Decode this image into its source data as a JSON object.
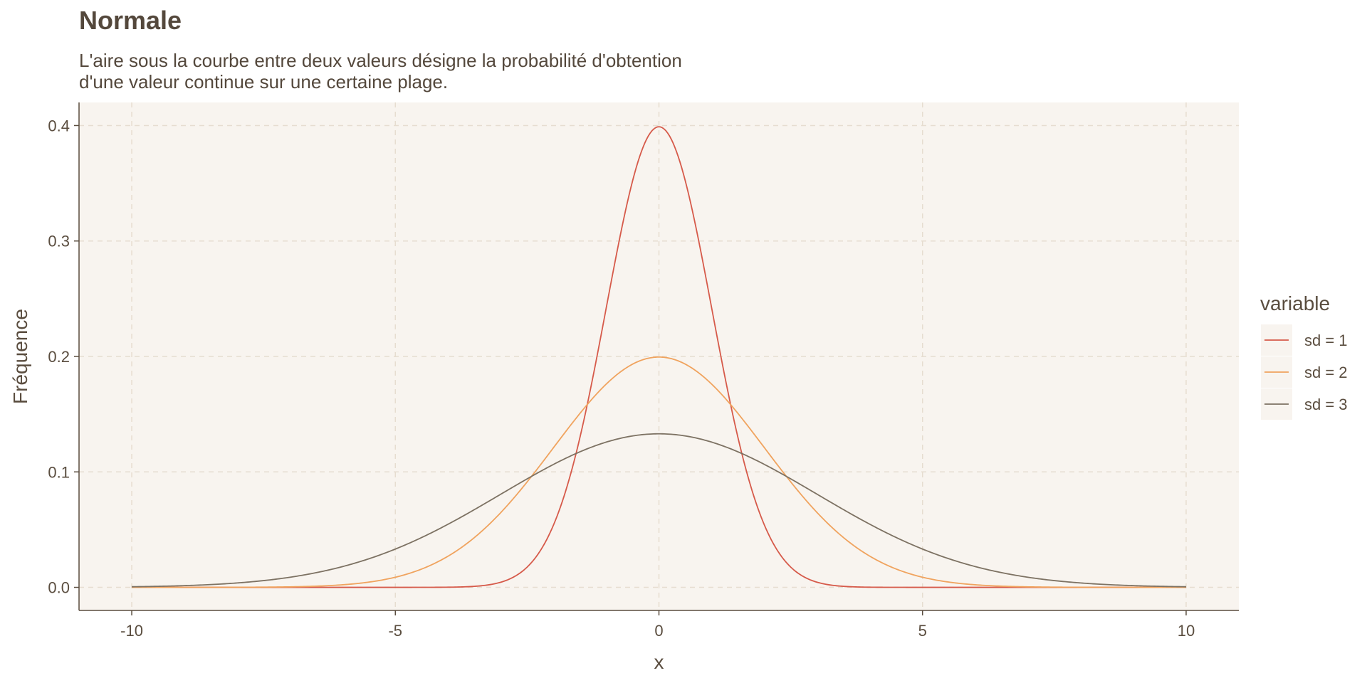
{
  "title": "Normale",
  "subtitle_lines": [
    "L'aire sous la courbe entre deux valeurs désigne la probabilité d'obtention",
    "d'une valeur continue sur une certaine plage."
  ],
  "colors": {
    "panel_background": "#f8f4ef",
    "grid": "#e6ddd0",
    "axis": "#5a4d3f",
    "sd1": "#d65a4a",
    "sd2": "#f0a35e",
    "sd3": "#7d7263"
  },
  "chart_data": {
    "type": "line",
    "title": "Normale",
    "xlabel": "x",
    "ylabel": "Fréquence",
    "xlim": [
      -11,
      11
    ],
    "ylim": [
      -0.02,
      0.42
    ],
    "x_ticks": [
      -10,
      -5,
      0,
      5,
      10
    ],
    "x_tick_labels": [
      "-10",
      "-5",
      "0",
      "5",
      "10"
    ],
    "y_ticks": [
      0.0,
      0.1,
      0.2,
      0.3,
      0.4
    ],
    "y_tick_labels": [
      "0.0",
      "0.1",
      "0.2",
      "0.3",
      "0.4"
    ],
    "grid": true,
    "legend": {
      "title": "variable",
      "placement": "right"
    },
    "x_range": [
      -10,
      10
    ],
    "series": [
      {
        "name": "sd = 1",
        "mean": 0,
        "sd": 1,
        "peak": 0.399,
        "color": "#d65a4a"
      },
      {
        "name": "sd = 2",
        "mean": 0,
        "sd": 2,
        "peak": 0.199,
        "color": "#f0a35e"
      },
      {
        "name": "sd = 3",
        "mean": 0,
        "sd": 3,
        "peak": 0.133,
        "color": "#7d7263"
      }
    ]
  }
}
